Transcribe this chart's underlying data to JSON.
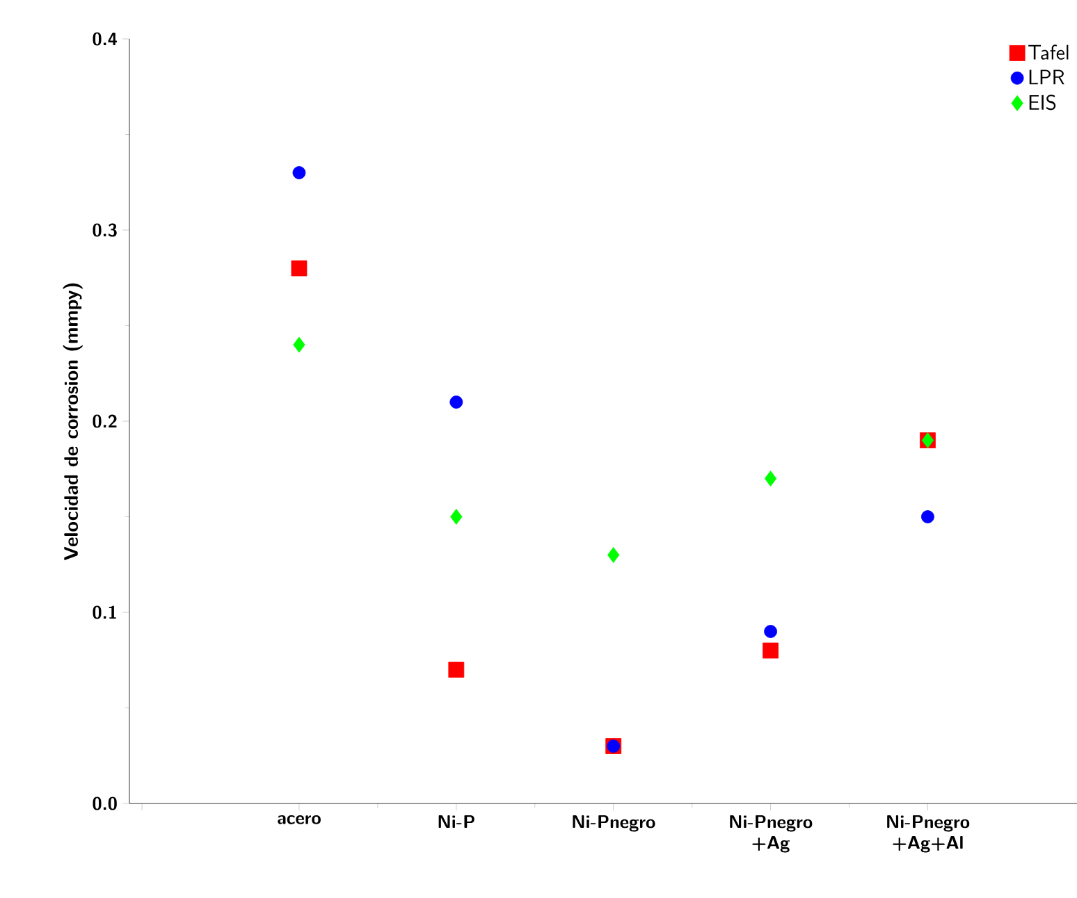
{
  "chart_data": {
    "type": "scatter",
    "ylabel": "Velocidad de corrosion (mmpy)",
    "categories": [
      "acero",
      "Ni-P",
      "Ni-Pnegro",
      "Ni-Pnegro +Ag",
      "Ni-Pnegro +Ag+Al"
    ],
    "series": [
      {
        "name": "Tafel",
        "color": "#ff0000",
        "marker": "square",
        "values": [
          0.28,
          0.07,
          0.03,
          0.08,
          0.19
        ]
      },
      {
        "name": "LPR",
        "color": "#0000ff",
        "marker": "circle",
        "values": [
          0.33,
          0.21,
          0.03,
          0.09,
          0.15
        ]
      },
      {
        "name": "EIS",
        "color": "#00ff00",
        "marker": "diamond",
        "values": [
          0.24,
          0.15,
          0.13,
          0.17,
          0.19
        ]
      }
    ],
    "ylim": [
      0,
      0.4
    ],
    "yticks": [
      {
        "value": 0,
        "label": "0.0"
      },
      {
        "value": 0.1,
        "label": "0.1"
      },
      {
        "value": 0.2,
        "label": "0.2"
      },
      {
        "value": 0.3,
        "label": "0.3"
      },
      {
        "value": 0.4,
        "label": "0.4"
      }
    ],
    "grid": false,
    "legend": "top right"
  }
}
